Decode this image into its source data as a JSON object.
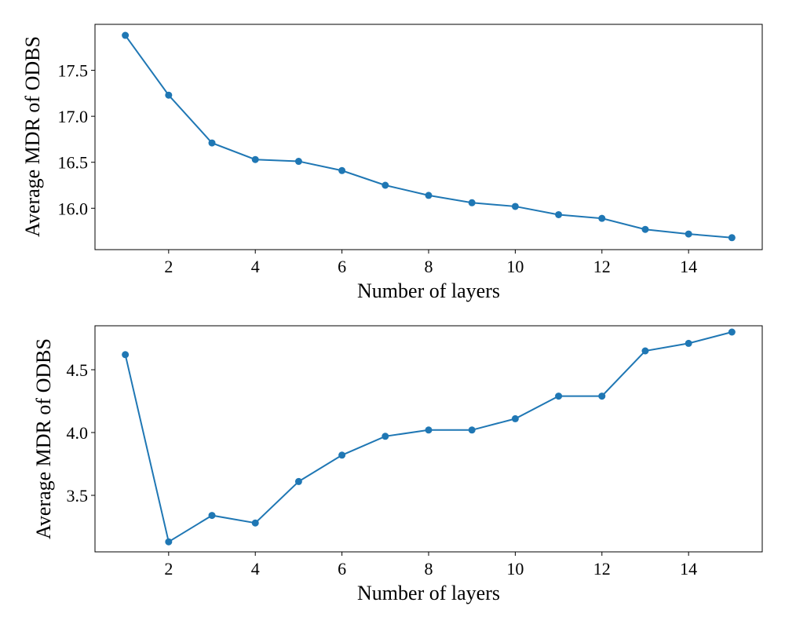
{
  "chart_data": [
    {
      "type": "line",
      "title": "",
      "xlabel": "Number of layers",
      "ylabel": "Average MDR of ODBS",
      "xlim": [
        0.3,
        15.7
      ],
      "ylim": [
        15.55,
        18.0
      ],
      "xticks": [
        2,
        4,
        6,
        8,
        10,
        12,
        14
      ],
      "yticks": [
        16.0,
        16.5,
        17.0,
        17.5
      ],
      "ytick_labels": [
        "16.0",
        "16.5",
        "17.0",
        "17.5"
      ],
      "grid": false,
      "series": [
        {
          "color": "#1f77b4",
          "marker": "circle",
          "x": [
            1,
            2,
            3,
            4,
            5,
            6,
            7,
            8,
            9,
            10,
            11,
            12,
            13,
            14,
            15
          ],
          "y": [
            17.88,
            17.23,
            16.71,
            16.53,
            16.51,
            16.41,
            16.25,
            16.14,
            16.06,
            16.02,
            15.93,
            15.89,
            15.77,
            15.72,
            15.68
          ]
        }
      ]
    },
    {
      "type": "line",
      "title": "",
      "xlabel": "Number of layers",
      "ylabel": "Average MDR of ODBS",
      "xlim": [
        0.3,
        15.7
      ],
      "ylim": [
        3.05,
        4.85
      ],
      "xticks": [
        2,
        4,
        6,
        8,
        10,
        12,
        14
      ],
      "yticks": [
        3.5,
        4.0,
        4.5
      ],
      "ytick_labels": [
        "3.5",
        "4.0",
        "4.5"
      ],
      "grid": false,
      "series": [
        {
          "color": "#1f77b4",
          "marker": "circle",
          "x": [
            1,
            2,
            3,
            4,
            5,
            6,
            7,
            8,
            9,
            10,
            11,
            12,
            13,
            14,
            15
          ],
          "y": [
            4.62,
            3.13,
            3.34,
            3.28,
            3.61,
            3.82,
            3.97,
            4.02,
            4.02,
            4.11,
            4.29,
            4.29,
            4.65,
            4.71,
            4.8
          ]
        }
      ]
    }
  ]
}
